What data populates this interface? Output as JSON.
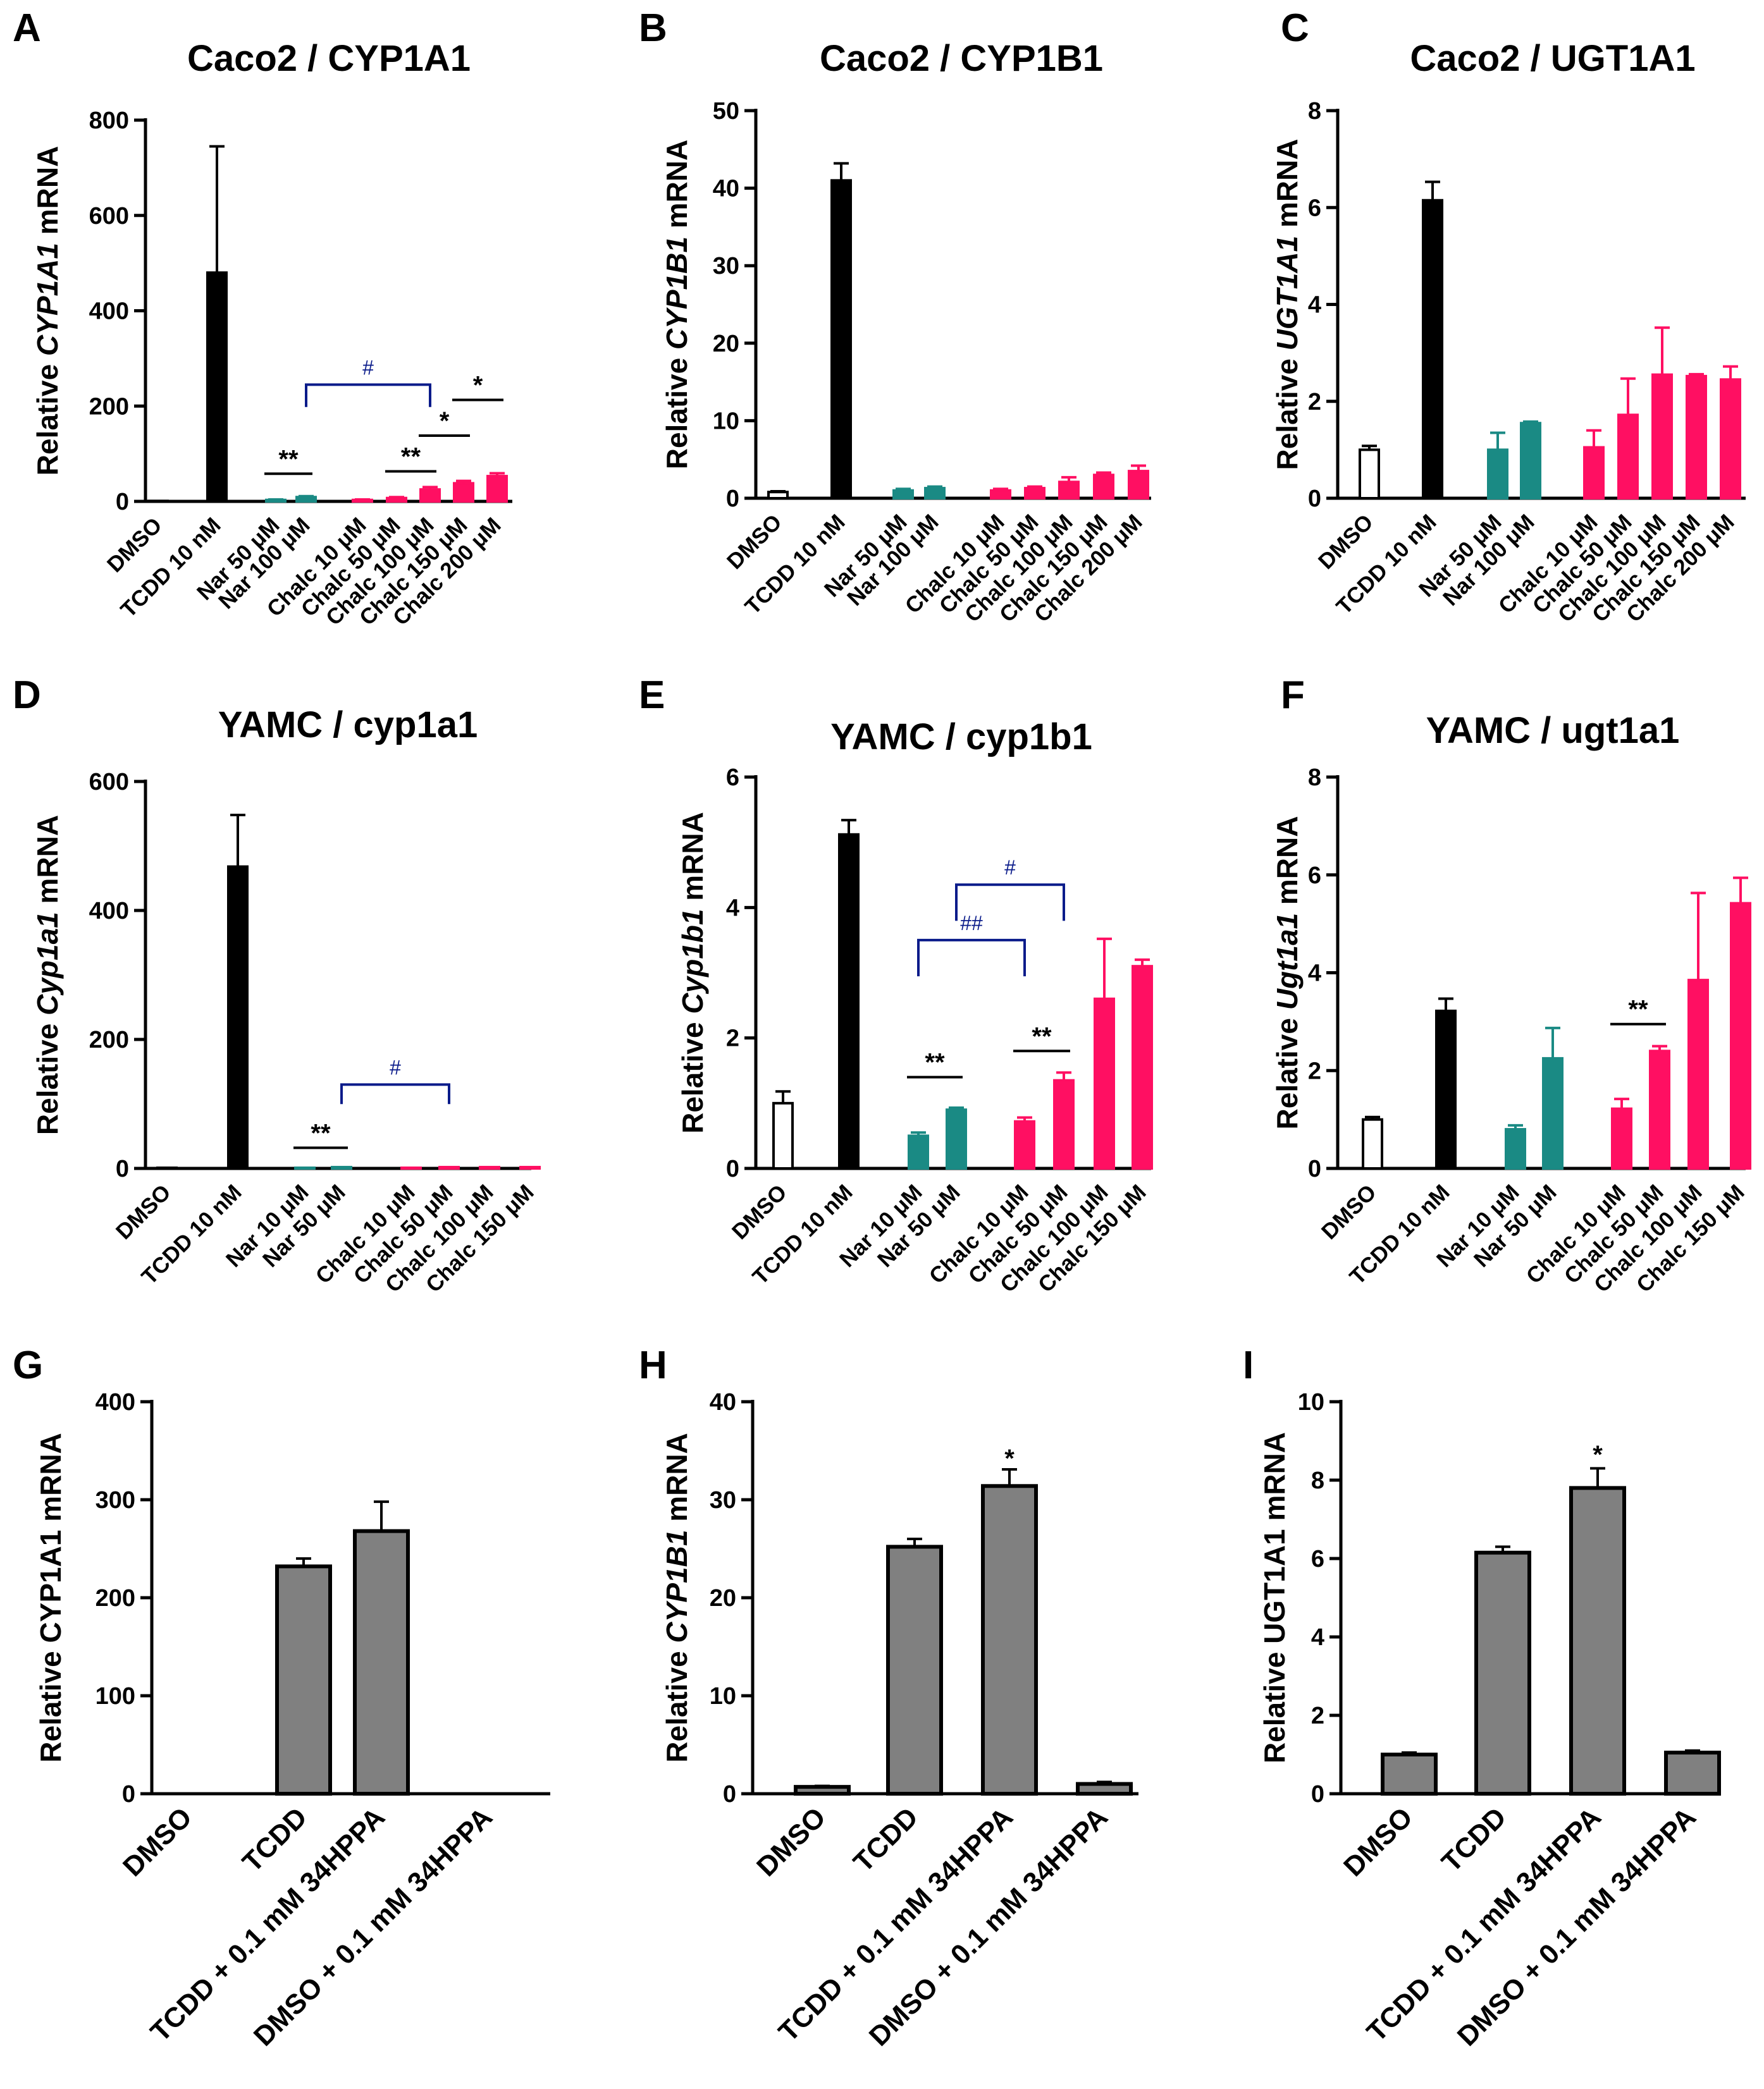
{
  "colors": {
    "white": "#ffffff",
    "black": "#000000",
    "teal": "#1a8a84",
    "pink": "#ff0f62",
    "gray": "#808080",
    "navy": "#0a1b8a"
  },
  "chart_data": [
    {
      "id": "A",
      "type": "bar",
      "letter": "A",
      "title": "Caco2 / CYP1A1",
      "ylabel_pre": "Relative ",
      "ylabel_ital": "CYP1A1",
      "ylabel_post": " mRNA",
      "ylim": [
        0,
        800
      ],
      "yticks": [
        "0",
        "200",
        "400",
        "600",
        "800"
      ],
      "categories": [
        "DMSO",
        "TCDD 10 nM",
        "Nar 50 μM",
        "Nar 100 μM",
        "Chalc 10 μM",
        "Chalc 50 μM",
        "Chalc 100 μM",
        "Chalc 150 μM",
        "Chalc 200 μM"
      ],
      "values": [
        1,
        480,
        3,
        9,
        3,
        7,
        25,
        38,
        53
      ],
      "errors": [
        0,
        265,
        1,
        2,
        1,
        2,
        5,
        5,
        6
      ],
      "colors": [
        "white",
        "black",
        "teal",
        "teal",
        "pink",
        "pink",
        "pink",
        "pink",
        "pink"
      ],
      "significance": [
        {
          "from": 2,
          "to": 3,
          "label": "**",
          "kind": "star",
          "y": 58
        },
        {
          "from": 5,
          "to": 6,
          "label": "**",
          "kind": "star",
          "y": 63
        },
        {
          "from": 6,
          "to": 7,
          "label": "*",
          "kind": "star",
          "y": 138
        },
        {
          "from": 7,
          "to": 8,
          "label": "*",
          "kind": "star",
          "y": 213
        },
        {
          "from": 3,
          "to": 6,
          "label": "#",
          "kind": "hash",
          "y": 245,
          "legs": true
        }
      ]
    },
    {
      "id": "B",
      "type": "bar",
      "letter": "B",
      "title": "Caco2 / CYP1B1",
      "ylabel_pre": "Relative ",
      "ylabel_ital": "CYP1B1",
      "ylabel_post": " mRNA",
      "ylim": [
        0,
        50
      ],
      "yticks": [
        "0",
        "10",
        "20",
        "30",
        "40",
        "50"
      ],
      "categories": [
        "DMSO",
        "TCDD 10 nM",
        "Nar 50 μM",
        "Nar 100 μM",
        "Chalc 10 μM",
        "Chalc 50 μM",
        "Chalc 100 μM",
        "Chalc 150 μM",
        "Chalc 200 μM"
      ],
      "values": [
        0.8,
        41,
        1.0,
        1.3,
        1.0,
        1.3,
        2.1,
        3.0,
        3.5
      ],
      "errors": [
        0.1,
        2.2,
        0.2,
        0.2,
        0.2,
        0.2,
        0.6,
        0.3,
        0.7
      ],
      "colors": [
        "white",
        "black",
        "teal",
        "teal",
        "pink",
        "pink",
        "pink",
        "pink",
        "pink"
      ],
      "significance": []
    },
    {
      "id": "C",
      "type": "bar",
      "letter": "C",
      "title": "Caco2 / UGT1A1",
      "ylabel_pre": "Relative ",
      "ylabel_ital": "UGT1A1",
      "ylabel_post": " mRNA",
      "ylim": [
        0,
        8
      ],
      "yticks": [
        "0",
        "2",
        "4",
        "6",
        "8"
      ],
      "categories": [
        "DMSO",
        "TCDD 10 nM",
        "Nar 50 μM",
        "Nar 100 μM",
        "Chalc 10 μM",
        "Chalc 50 μM",
        "Chalc 100 μM",
        "Chalc 150 μM",
        "Chalc 200 μM"
      ],
      "values": [
        1.0,
        6.15,
        1.0,
        1.55,
        1.05,
        1.72,
        2.55,
        2.52,
        2.45
      ],
      "errors": [
        0.08,
        0.38,
        0.35,
        0.03,
        0.35,
        0.75,
        0.97,
        0.04,
        0.27
      ],
      "colors": [
        "white",
        "black",
        "teal",
        "teal",
        "pink",
        "pink",
        "pink",
        "pink",
        "pink"
      ],
      "significance": []
    },
    {
      "id": "D",
      "type": "bar",
      "letter": "D",
      "title": "YAMC / cyp1a1",
      "ylabel_pre": "Relative ",
      "ylabel_ital": "Cyp1a1",
      "ylabel_post": " mRNA",
      "ylim": [
        0,
        600
      ],
      "yticks": [
        "0",
        "200",
        "400",
        "600"
      ],
      "categories": [
        "DMSO",
        "TCDD 10 nM",
        "Nar 10 μM",
        "Nar 50 μM",
        "Chalc 10 μM",
        "Chalc 50 μM",
        "Chalc 100 μM",
        "Chalc 150 μM"
      ],
      "values": [
        1,
        468,
        1,
        2,
        1,
        2,
        2,
        2
      ],
      "errors": [
        0,
        80,
        0,
        0,
        0,
        0,
        0,
        0
      ],
      "colors": [
        "white",
        "black",
        "teal",
        "teal",
        "pink",
        "pink",
        "pink",
        "pink"
      ],
      "significance": [
        {
          "from": 2,
          "to": 3,
          "label": "**",
          "kind": "star",
          "y": 32
        },
        {
          "from": 3,
          "to": 5,
          "label": "#",
          "kind": "hash",
          "y": 130,
          "legs": true
        }
      ]
    },
    {
      "id": "E",
      "type": "bar",
      "letter": "E",
      "title": "YAMC / cyp1b1",
      "ylabel_pre": "Relative ",
      "ylabel_ital": "Cyp1b1",
      "ylabel_post": " mRNA",
      "ylim": [
        0,
        6
      ],
      "yticks": [
        "0",
        "2",
        "4",
        "6"
      ],
      "categories": [
        "DMSO",
        "TCDD 10 nM",
        "Nar 10 μM",
        "Nar 50 μM",
        "Chalc 10 μM",
        "Chalc 50 μM",
        "Chalc 100 μM",
        "Chalc 150 μM"
      ],
      "values": [
        1.0,
        5.12,
        0.5,
        0.9,
        0.72,
        1.35,
        2.6,
        3.1
      ],
      "errors": [
        0.18,
        0.22,
        0.05,
        0.03,
        0.06,
        0.12,
        0.92,
        0.1
      ],
      "colors": [
        "white",
        "black",
        "teal",
        "teal",
        "pink",
        "pink",
        "pink",
        "pink"
      ],
      "significance": [
        {
          "from": 2,
          "to": 3,
          "label": "**",
          "kind": "star",
          "y": 1.4
        },
        {
          "from": 4,
          "to": 5,
          "label": "**",
          "kind": "star",
          "y": 1.8
        },
        {
          "from": 2,
          "to": 4,
          "label": "##",
          "kind": "hash",
          "y": 3.5,
          "legs": true
        },
        {
          "from": 3,
          "to": 5,
          "label": "#",
          "kind": "hash",
          "y": 4.35,
          "legs": true
        }
      ]
    },
    {
      "id": "F",
      "type": "bar",
      "letter": "F",
      "title": "YAMC / ugt1a1",
      "ylabel_pre": "Relative ",
      "ylabel_ital": "Ugt1a1",
      "ylabel_post": " mRNA",
      "ylim": [
        0,
        8
      ],
      "yticks": [
        "0",
        "2",
        "4",
        "6",
        "8"
      ],
      "categories": [
        "DMSO",
        "TCDD 10 nM",
        "Nar 10 μM",
        "Nar 50 μM",
        "Chalc 10 μM",
        "Chalc 50 μM",
        "Chalc 100 μM",
        "Chalc 150 μM"
      ],
      "values": [
        1.0,
        3.22,
        0.8,
        2.25,
        1.22,
        2.4,
        3.85,
        5.42
      ],
      "errors": [
        0.05,
        0.25,
        0.08,
        0.62,
        0.2,
        0.1,
        1.78,
        0.52
      ],
      "colors": [
        "white",
        "black",
        "teal",
        "teal",
        "pink",
        "pink",
        "pink",
        "pink"
      ],
      "significance": [
        {
          "from": 4,
          "to": 5,
          "label": "**",
          "kind": "star",
          "y": 2.95
        }
      ]
    },
    {
      "id": "G",
      "type": "bar",
      "letter": "G",
      "title": "",
      "ylabel_pre": "Relative CYP1A1 mRNA",
      "ylabel_ital": "",
      "ylabel_post": "",
      "ylim": [
        0,
        400
      ],
      "yticks": [
        "0",
        "100",
        "200",
        "300",
        "400"
      ],
      "categories": [
        "DMSO",
        "TCDD",
        "TCDD + 0.1 mM 34HPPA",
        "DMSO + 0.1 mM 34HPPA"
      ],
      "values": [
        0,
        232,
        268,
        0
      ],
      "errors": [
        0,
        8,
        30,
        0
      ],
      "colors": [
        "gray",
        "gray",
        "gray",
        "gray"
      ],
      "significance": []
    },
    {
      "id": "H",
      "type": "bar",
      "letter": "H",
      "title": "",
      "ylabel_pre": "Relative ",
      "ylabel_ital": "CYP1B1",
      "ylabel_post": " mRNA",
      "ylim": [
        0,
        40
      ],
      "yticks": [
        "0",
        "10",
        "20",
        "30",
        "40"
      ],
      "categories": [
        "DMSO",
        "TCDD",
        "TCDD + 0.1 mM 34HPPA",
        "DMSO + 0.1 mM 34HPPA"
      ],
      "values": [
        0.7,
        25.2,
        31.4,
        1.0
      ],
      "errors": [
        0.1,
        0.8,
        1.7,
        0.2
      ],
      "colors": [
        "gray",
        "gray",
        "gray",
        "gray"
      ],
      "significance": [
        {
          "from": 2,
          "to": 2,
          "label": "*",
          "kind": "top",
          "y": 34.0
        }
      ]
    },
    {
      "id": "I",
      "type": "bar",
      "letter": "I",
      "title": "",
      "ylabel_pre": "Relative UGT1A1 mRNA",
      "ylabel_ital": "",
      "ylabel_post": "",
      "ylim": [
        0,
        10
      ],
      "yticks": [
        "0",
        "2",
        "4",
        "6",
        "8",
        "10"
      ],
      "categories": [
        "DMSO",
        "TCDD",
        "TCDD + 0.1 mM 34HPPA",
        "DMSO + 0.1 mM 34HPPA"
      ],
      "values": [
        1.0,
        6.15,
        7.8,
        1.05
      ],
      "errors": [
        0.05,
        0.15,
        0.5,
        0.05
      ],
      "colors": [
        "gray",
        "gray",
        "gray",
        "gray"
      ],
      "significance": [
        {
          "from": 2,
          "to": 2,
          "label": "*",
          "kind": "top",
          "y": 8.6
        }
      ]
    }
  ]
}
